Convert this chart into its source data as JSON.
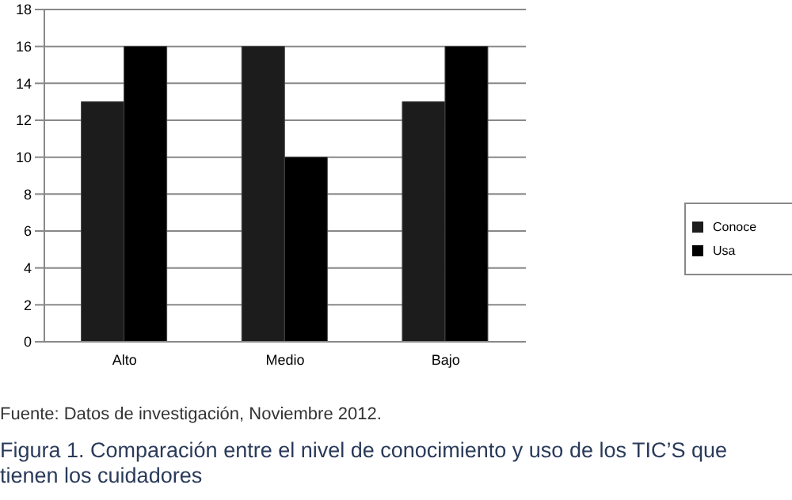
{
  "chart_data": {
    "type": "bar",
    "categories": [
      "Alto",
      "Medio",
      "Bajo"
    ],
    "series": [
      {
        "name": "Conoce",
        "color": "#1c1c1c",
        "values": [
          13,
          16,
          13
        ]
      },
      {
        "name": "Usa",
        "color": "#000000",
        "values": [
          16,
          10,
          16
        ]
      }
    ],
    "ylim": [
      0,
      18
    ],
    "yticks": [
      0,
      2,
      4,
      6,
      8,
      10,
      12,
      14,
      16,
      18
    ],
    "grid": "y",
    "legend": "right",
    "annotations": [
      "Fuente: Datos de investigación, Noviembre 2012.",
      "Figura 1. Comparación entre el nivel de conocimiento y uso de los TIC’S que tienen los cuidadores"
    ]
  }
}
